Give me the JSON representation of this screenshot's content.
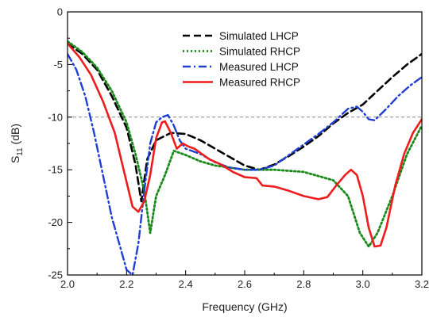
{
  "chart_data": {
    "type": "line",
    "xlabel": "Frequency (GHz)",
    "ylabel_main": "S",
    "ylabel_sub": "11",
    "ylabel_unit": " (dB)",
    "xlim": [
      2.0,
      3.2
    ],
    "ylim": [
      -25,
      0
    ],
    "xticks": [
      2.0,
      2.2,
      2.4,
      2.6,
      2.8,
      3.0,
      3.2
    ],
    "xtick_labels": [
      "2.0",
      "2.2",
      "2.4",
      "2.6",
      "2.8",
      "3.0",
      "3.2"
    ],
    "yticks": [
      0,
      -5,
      -10,
      -15,
      -20,
      -25
    ],
    "ytick_labels": [
      "0",
      "-5",
      "-10",
      "-15",
      "-20",
      "-25"
    ],
    "reference_line": -10,
    "legend_position": "top-center",
    "series": [
      {
        "name": "Simulated LHCP",
        "color": "#000000",
        "style": "dashed",
        "x": [
          2.0,
          2.05,
          2.1,
          2.15,
          2.2,
          2.23,
          2.25,
          2.27,
          2.3,
          2.35,
          2.4,
          2.45,
          2.5,
          2.55,
          2.6,
          2.65,
          2.7,
          2.75,
          2.8,
          2.85,
          2.9,
          2.95,
          3.0,
          3.05,
          3.1,
          3.15,
          3.2
        ],
        "y": [
          -3.0,
          -4.0,
          -5.5,
          -8.0,
          -11.0,
          -14.5,
          -18.0,
          -14.0,
          -12.2,
          -11.5,
          -11.6,
          -12.2,
          -13.0,
          -13.8,
          -14.6,
          -15.0,
          -14.5,
          -13.7,
          -12.8,
          -11.8,
          -10.6,
          -9.6,
          -8.8,
          -7.5,
          -6.2,
          -5.0,
          -4.0
        ]
      },
      {
        "name": "Simulated RHCP",
        "color": "#1a8a1a",
        "style": "dotted",
        "x": [
          2.0,
          2.05,
          2.1,
          2.15,
          2.2,
          2.23,
          2.26,
          2.28,
          2.3,
          2.33,
          2.36,
          2.4,
          2.45,
          2.5,
          2.55,
          2.6,
          2.7,
          2.8,
          2.9,
          2.95,
          2.99,
          3.02,
          3.05,
          3.1,
          3.15,
          3.2
        ],
        "y": [
          -2.8,
          -3.8,
          -5.3,
          -7.5,
          -10.5,
          -13.5,
          -17.0,
          -21.0,
          -17.5,
          -15.5,
          -13.2,
          -13.6,
          -14.2,
          -14.6,
          -14.8,
          -15.0,
          -15.0,
          -15.2,
          -16.0,
          -17.5,
          -21.0,
          -22.3,
          -21.0,
          -17.5,
          -13.5,
          -10.8
        ]
      },
      {
        "name": "Measured LHCP",
        "color": "#1f3fd4",
        "style": "dashdot",
        "x": [
          2.0,
          2.03,
          2.06,
          2.09,
          2.12,
          2.15,
          2.18,
          2.2,
          2.22,
          2.24,
          2.26,
          2.28,
          2.3,
          2.32,
          2.34,
          2.36,
          2.38,
          2.4,
          2.45,
          2.5,
          2.55,
          2.6,
          2.65,
          2.7,
          2.75,
          2.8,
          2.85,
          2.9,
          2.95,
          2.98,
          3.0,
          3.02,
          3.04,
          3.08,
          3.12,
          3.16,
          3.2
        ],
        "y": [
          -4.0,
          -5.5,
          -8.0,
          -11.5,
          -15.5,
          -19.5,
          -22.5,
          -24.5,
          -25.0,
          -22.0,
          -17.0,
          -12.5,
          -10.5,
          -10.0,
          -9.8,
          -10.8,
          -12.2,
          -13.0,
          -13.5,
          -14.3,
          -14.8,
          -15.0,
          -15.0,
          -14.6,
          -13.6,
          -12.6,
          -11.6,
          -10.5,
          -9.2,
          -9.0,
          -9.5,
          -10.2,
          -10.3,
          -9.2,
          -8.0,
          -7.0,
          -6.2
        ]
      },
      {
        "name": "Measured RHCP",
        "color": "#ee1c1c",
        "style": "solid",
        "x": [
          2.0,
          2.04,
          2.08,
          2.12,
          2.16,
          2.19,
          2.22,
          2.24,
          2.26,
          2.28,
          2.3,
          2.32,
          2.33,
          2.35,
          2.37,
          2.39,
          2.41,
          2.43,
          2.45,
          2.48,
          2.52,
          2.56,
          2.6,
          2.64,
          2.66,
          2.7,
          2.75,
          2.8,
          2.85,
          2.88,
          2.91,
          2.94,
          2.96,
          2.98,
          3.0,
          3.02,
          3.04,
          3.06,
          3.08,
          3.11,
          3.14,
          3.17,
          3.2
        ],
        "y": [
          -3.0,
          -4.3,
          -6.0,
          -8.5,
          -11.5,
          -15.0,
          -18.5,
          -19.0,
          -18.0,
          -15.5,
          -12.0,
          -10.5,
          -10.4,
          -11.5,
          -13.0,
          -12.5,
          -12.8,
          -13.0,
          -13.4,
          -14.0,
          -14.5,
          -15.2,
          -15.7,
          -15.8,
          -16.5,
          -16.6,
          -17.0,
          -17.5,
          -17.8,
          -17.6,
          -16.5,
          -15.5,
          -15.0,
          -15.5,
          -17.5,
          -20.5,
          -22.3,
          -22.2,
          -20.5,
          -16.5,
          -13.5,
          -11.5,
          -10.2
        ]
      }
    ]
  }
}
